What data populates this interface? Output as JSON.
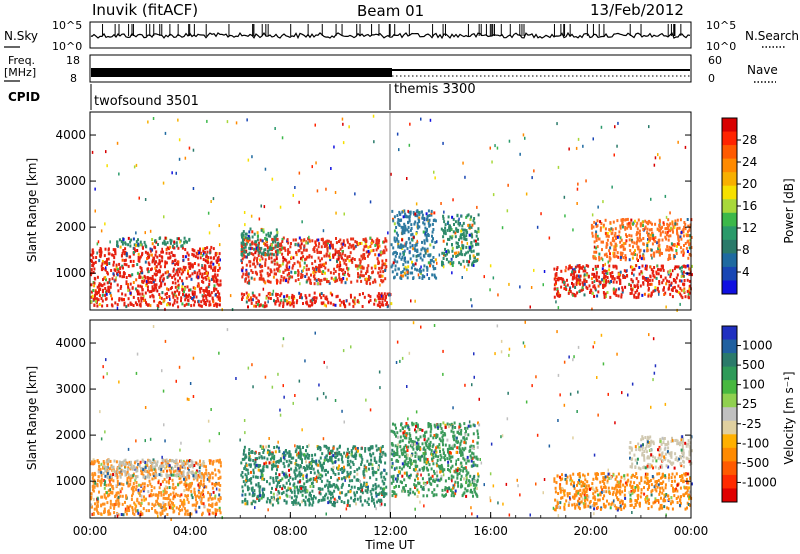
{
  "header": {
    "station": "Inuvik (fitACF)",
    "beam": "Beam 01",
    "date": "13/Feb/2012"
  },
  "noise_panel": {
    "left_label": "N.Sky",
    "right_label": "N.Search",
    "left_ticks": [
      "10^5",
      "10^0"
    ],
    "right_ticks": [
      "10^5",
      "10^0"
    ]
  },
  "freq_panel": {
    "left_label_line1": "Freq.",
    "left_label_line2": "[MHz]",
    "right_label": "Nave",
    "left_ticks": [
      "18",
      "8"
    ],
    "right_ticks": [
      "60",
      "0"
    ]
  },
  "cpid_panel": {
    "label": "CPID",
    "programs": [
      {
        "name": "twofsound 3501",
        "start_hour": 0
      },
      {
        "name": "themis 3300",
        "start_hour": 12
      }
    ]
  },
  "chart_data": [
    {
      "type": "heatmap",
      "quantity": "Power",
      "ylabel": "Slant Range [km]",
      "yticks": [
        "1000",
        "2000",
        "3000",
        "4000"
      ],
      "ylim": [
        200,
        4500
      ],
      "xlim": [
        0,
        24
      ],
      "colorbar_label": "Power [dB]",
      "colorbar_ticks": [
        "28",
        "24",
        "20",
        "16",
        "12",
        "8",
        "4"
      ],
      "colorbar_colors": [
        "#d80000",
        "#ff2400",
        "#ff5a00",
        "#ff8a00",
        "#f8b000",
        "#f6e000",
        "#a8d83a",
        "#3cb84a",
        "#2a9a6a",
        "#2a7a6a",
        "#1e6aa0",
        "#1846b4",
        "#1010e0"
      ],
      "echo_regions": [
        {
          "t0": 0.0,
          "t1": 5.2,
          "r0": 300,
          "r1": 1600,
          "color": "#e62010"
        },
        {
          "t0": 1.0,
          "t1": 4.0,
          "r0": 1600,
          "r1": 1800,
          "color": "#2e8a6a"
        },
        {
          "t0": 6.0,
          "t1": 11.8,
          "r0": 800,
          "r1": 1800,
          "color": "#e83018"
        },
        {
          "t0": 6.0,
          "t1": 12.0,
          "r0": 300,
          "r1": 600,
          "color": "#e82010"
        },
        {
          "t0": 6.0,
          "t1": 7.5,
          "r0": 1400,
          "r1": 2000,
          "color": "#2e8a6a"
        },
        {
          "t0": 12.0,
          "t1": 13.8,
          "r0": 900,
          "r1": 2400,
          "color": "#2e7aa0"
        },
        {
          "t0": 14.0,
          "t1": 15.5,
          "r0": 1200,
          "r1": 2300,
          "color": "#2e8a6a"
        },
        {
          "t0": 18.5,
          "t1": 24.0,
          "r0": 500,
          "r1": 1200,
          "color": "#e62010"
        },
        {
          "t0": 20.0,
          "t1": 24.0,
          "r0": 1300,
          "r1": 2200,
          "color": "#ff7020"
        }
      ]
    },
    {
      "type": "heatmap",
      "quantity": "Velocity",
      "ylabel": "Slant Range [km]",
      "yticks": [
        "1000",
        "2000",
        "3000",
        "4000"
      ],
      "ylim": [
        200,
        4500
      ],
      "xlim": [
        0,
        24
      ],
      "xlabel": "Time UT",
      "xticks": [
        "00:00",
        "04:00",
        "08:00",
        "12:00",
        "16:00",
        "20:00",
        "00:00"
      ],
      "colorbar_label": "Velocity [m s⁻¹]",
      "colorbar_ticks": [
        "1000",
        "500",
        "100",
        "25",
        "-25",
        "-100",
        "-500",
        "-1000"
      ],
      "colorbar_colors": [
        "#2030c0",
        "#2060a0",
        "#2a7a6a",
        "#2e9a58",
        "#48b840",
        "#90d050",
        "#c0c0c0",
        "#e0d0a0",
        "#ffb000",
        "#ff8a00",
        "#ff5a00",
        "#ff2a00",
        "#e00000"
      ],
      "echo_regions": [
        {
          "t0": 0.0,
          "t1": 5.2,
          "r0": 300,
          "r1": 1500,
          "color": "#ff9020"
        },
        {
          "t0": 0.5,
          "t1": 4.5,
          "r0": 1100,
          "r1": 1500,
          "color": "#c0c0b0"
        },
        {
          "t0": 6.0,
          "t1": 11.8,
          "r0": 500,
          "r1": 1800,
          "color": "#2e8a6a"
        },
        {
          "t0": 12.0,
          "t1": 15.5,
          "r0": 700,
          "r1": 2300,
          "color": "#3a9a5a"
        },
        {
          "t0": 18.5,
          "t1": 24.0,
          "r0": 400,
          "r1": 1200,
          "color": "#ff8a10"
        },
        {
          "t0": 21.5,
          "t1": 24.0,
          "r0": 1300,
          "r1": 2000,
          "color": "#d0c8b0"
        }
      ]
    }
  ]
}
